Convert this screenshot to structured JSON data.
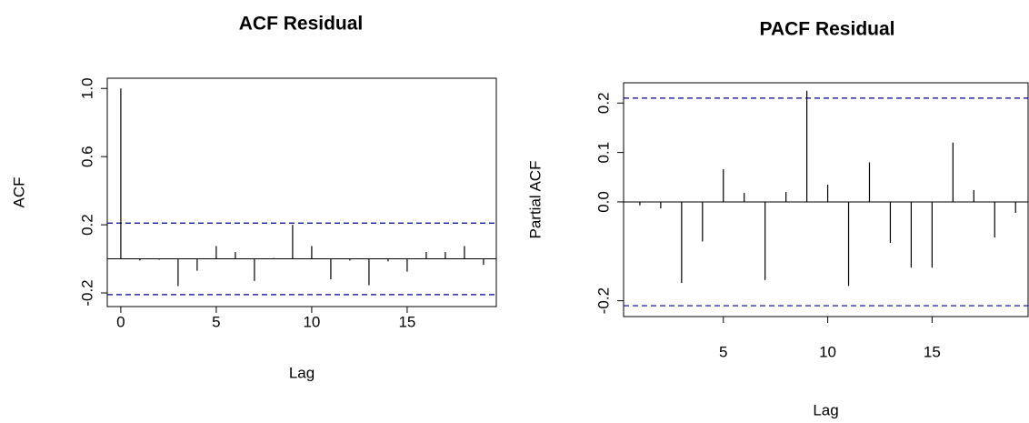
{
  "chart_data": [
    {
      "type": "bar",
      "title": "ACF Residual",
      "x_label": "Lag",
      "y_label": "ACF",
      "x": [
        0,
        1,
        2,
        3,
        4,
        5,
        6,
        7,
        8,
        9,
        10,
        11,
        12,
        13,
        14,
        15,
        16,
        17,
        18,
        19
      ],
      "values": [
        1.0,
        -0.01,
        -0.005,
        -0.16,
        -0.07,
        0.075,
        0.04,
        -0.13,
        0.005,
        0.2,
        0.075,
        -0.12,
        -0.01,
        -0.155,
        -0.015,
        -0.075,
        0.04,
        0.04,
        0.075,
        -0.035
      ],
      "color": "#000000",
      "ci_upper": 0.21,
      "ci_lower": -0.21,
      "ci_color": "#00008b",
      "xlim": [
        -0.71,
        19.67
      ],
      "ylim": [
        -0.28,
        1.06
      ],
      "xticks": [
        0,
        5,
        10,
        15
      ],
      "yticks": [
        -0.2,
        0.2,
        0.6,
        {
          "value": 1,
          "label": "1.0"
        }
      ]
    },
    {
      "type": "bar",
      "title": "PACF Residual",
      "x_label": "Lag",
      "y_label": "Partial ACF",
      "x": [
        1,
        2,
        3,
        4,
        5,
        6,
        7,
        8,
        9,
        10,
        11,
        12,
        13,
        14,
        15,
        16,
        17,
        18,
        19
      ],
      "values": [
        -0.007,
        -0.013,
        -0.164,
        -0.08,
        0.066,
        0.018,
        -0.158,
        0.02,
        0.225,
        0.035,
        -0.17,
        0.08,
        -0.083,
        -0.133,
        -0.133,
        0.12,
        0.024,
        -0.072,
        -0.022
      ],
      "color": "#000000",
      "ci_upper": 0.21,
      "ci_lower": -0.21,
      "ci_color": "#00008b",
      "xlim": [
        0.22,
        19.6
      ],
      "ylim": [
        -0.232,
        0.241
      ],
      "xticks": [
        5,
        10,
        15
      ],
      "yticks": [
        -0.2,
        {
          "value": 0,
          "label": "0.0"
        },
        0.1,
        0.2
      ]
    }
  ]
}
